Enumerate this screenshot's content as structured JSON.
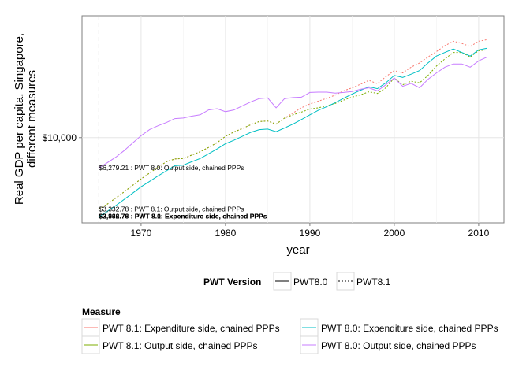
{
  "chart_data": {
    "type": "line",
    "title": "",
    "xlabel": "year",
    "ylabel_lines": [
      "Real GDP per capita, Singapore,",
      "different measures"
    ],
    "y_scale": "log",
    "xlim": [
      1963,
      2013
    ],
    "ylim": [
      2700,
      65000
    ],
    "x_ticks": [
      1970,
      1980,
      1990,
      2000,
      2010
    ],
    "y_ticks": [
      {
        "value": 10000,
        "label": "$10,000"
      }
    ],
    "grid": true,
    "reference_line_x": 1965,
    "colors": {
      "pwt81_expenditure": "#F8766D",
      "pwt81_output": "#7CAE00",
      "pwt80_expenditure": "#00BFC4",
      "pwt80_output": "#C77CFF"
    },
    "series": [
      {
        "name": "PWT 8.1: Expenditure side, chained PPPs",
        "version": "PWT8.1",
        "color_key": "pwt81_expenditure",
        "dashed": true,
        "x": [
          1965,
          1966,
          1967,
          1968,
          1969,
          1970,
          1971,
          1972,
          1973,
          1974,
          1975,
          1976,
          1977,
          1978,
          1979,
          1980,
          1981,
          1982,
          1983,
          1984,
          1985,
          1986,
          1987,
          1988,
          1989,
          1990,
          1991,
          1992,
          1993,
          1994,
          1995,
          1996,
          1997,
          1998,
          1999,
          2000,
          2001,
          2002,
          2003,
          2004,
          2005,
          2006,
          2007,
          2008,
          2009,
          2010,
          2011
        ],
        "y": [
          3332.78,
          3600,
          3950,
          4350,
          4800,
          5300,
          5800,
          6350,
          6900,
          7200,
          7250,
          7650,
          8050,
          8600,
          9250,
          10200,
          10900,
          11500,
          12200,
          12800,
          12900,
          12300,
          13500,
          14600,
          15800,
          16800,
          17500,
          18300,
          19200,
          20500,
          21500,
          22700,
          24100,
          22900,
          25500,
          28000,
          27000,
          29500,
          31500,
          34500,
          37500,
          41000,
          44000,
          42500,
          40500,
          44000,
          45000
        ]
      },
      {
        "name": "PWT 8.1: Output side, chained PPPs",
        "version": "PWT8.1",
        "color_key": "pwt81_output",
        "dashed": true,
        "x": [
          1965,
          1966,
          1967,
          1968,
          1969,
          1970,
          1971,
          1972,
          1973,
          1974,
          1975,
          1976,
          1977,
          1978,
          1979,
          1980,
          1981,
          1982,
          1983,
          1984,
          1985,
          1986,
          1987,
          1988,
          1989,
          1990,
          1991,
          1992,
          1993,
          1994,
          1995,
          1996,
          1997,
          1998,
          1999,
          2000,
          2001,
          2002,
          2003,
          2004,
          2005,
          2006,
          2007,
          2008,
          2009,
          2010,
          2011
        ],
        "y": [
          3332.78,
          3600,
          3950,
          4350,
          4800,
          5300,
          5800,
          6350,
          6900,
          7200,
          7250,
          7650,
          8050,
          8600,
          9250,
          10200,
          10900,
          11500,
          12200,
          12800,
          12900,
          12300,
          13500,
          14200,
          14800,
          15500,
          15800,
          16300,
          16900,
          17800,
          18600,
          19300,
          20200,
          19700,
          21500,
          25000,
          22500,
          23800,
          23200,
          26000,
          30000,
          33500,
          37000,
          37000,
          34500,
          38000,
          38500
        ]
      },
      {
        "name": "PWT 8.0: Expenditure side, chained PPPs",
        "version": "PWT8.0",
        "color_key": "pwt80_expenditure",
        "dashed": false,
        "x": [
          1965,
          1966,
          1967,
          1968,
          1969,
          1970,
          1971,
          1972,
          1973,
          1974,
          1975,
          1976,
          1977,
          1978,
          1979,
          1980,
          1981,
          1982,
          1983,
          1984,
          1985,
          1986,
          1987,
          1988,
          1989,
          1990,
          1991,
          1992,
          1993,
          1994,
          1995,
          1996,
          1997,
          1998,
          1999,
          2000,
          2001,
          2002,
          2003,
          2004,
          2005,
          2006,
          2007,
          2008,
          2009,
          2010,
          2011
        ],
        "y": [
          2966.76,
          3220,
          3520,
          3870,
          4260,
          4700,
          5100,
          5550,
          6000,
          6500,
          6550,
          6900,
          7250,
          7800,
          8400,
          9100,
          9600,
          10200,
          10850,
          11300,
          11400,
          10950,
          11600,
          12300,
          13200,
          14200,
          15200,
          16100,
          17100,
          18300,
          19500,
          20700,
          21800,
          21200,
          23200,
          26000,
          25200,
          26500,
          28000,
          31500,
          35000,
          37000,
          39000,
          37000,
          35000,
          38500,
          39500
        ]
      },
      {
        "name": "PWT 8.0: Output side, chained PPPs",
        "version": "PWT8.0",
        "color_key": "pwt80_output",
        "dashed": false,
        "x": [
          1965,
          1966,
          1967,
          1968,
          1969,
          1970,
          1971,
          1972,
          1973,
          1974,
          1975,
          1976,
          1977,
          1978,
          1979,
          1980,
          1981,
          1982,
          1983,
          1984,
          1985,
          1986,
          1987,
          1988,
          1989,
          1990,
          1991,
          1992,
          1993,
          1994,
          1995,
          1996,
          1997,
          1998,
          1999,
          2000,
          2001,
          2002,
          2003,
          2004,
          2005,
          2006,
          2007,
          2008,
          2009,
          2010,
          2011
        ],
        "y": [
          6279.21,
          6800,
          7400,
          8200,
          9200,
          10300,
          11300,
          12000,
          12600,
          13400,
          13500,
          13900,
          14200,
          15300,
          15600,
          14900,
          15300,
          16300,
          17300,
          18200,
          18400,
          15800,
          18200,
          18500,
          18600,
          20000,
          20100,
          20100,
          19800,
          20000,
          20300,
          21000,
          21500,
          20500,
          22500,
          25000,
          22000,
          23000,
          21500,
          24500,
          27000,
          29500,
          31000,
          31000,
          29500,
          32500,
          34500
        ]
      }
    ],
    "annotations": [
      {
        "x": 1965,
        "value": 6279.21,
        "text": "$6,279.21 :  PWT 8.0: Output side, chained PPPs",
        "bold": false
      },
      {
        "x": 1965,
        "value": 3332.78,
        "text": "$3,332.78 :  PWT 8.1: Output side, chained PPPs",
        "bold": false
      },
      {
        "x": 1965,
        "value": 3000,
        "text": "$3,332.78 :  PWT 8.1: Expenditure side, chained PPPs",
        "bold": true
      },
      {
        "x": 1965,
        "value": 3000,
        "text": "$2,966.76 :  PWT 8.0: Expenditure side, chained PPPs",
        "bold": true
      }
    ],
    "legend_version": {
      "title": "PWT Version",
      "items": [
        {
          "label": "PWT8.0",
          "dashed": false
        },
        {
          "label": "PWT8.1",
          "dashed": true
        }
      ],
      "placement": "bottom"
    },
    "legend_measure": {
      "title": "Measure",
      "placement": "bottom",
      "items": [
        {
          "label": "PWT 8.1: Expenditure side, chained PPPs",
          "color_key": "pwt81_expenditure"
        },
        {
          "label": "PWT 8.0: Expenditure side, chained PPPs",
          "color_key": "pwt80_expenditure"
        },
        {
          "label": "PWT 8.1: Output side, chained PPPs",
          "color_key": "pwt81_output"
        },
        {
          "label": "PWT 8.0: Output side, chained PPPs",
          "color_key": "pwt80_output"
        }
      ]
    }
  }
}
